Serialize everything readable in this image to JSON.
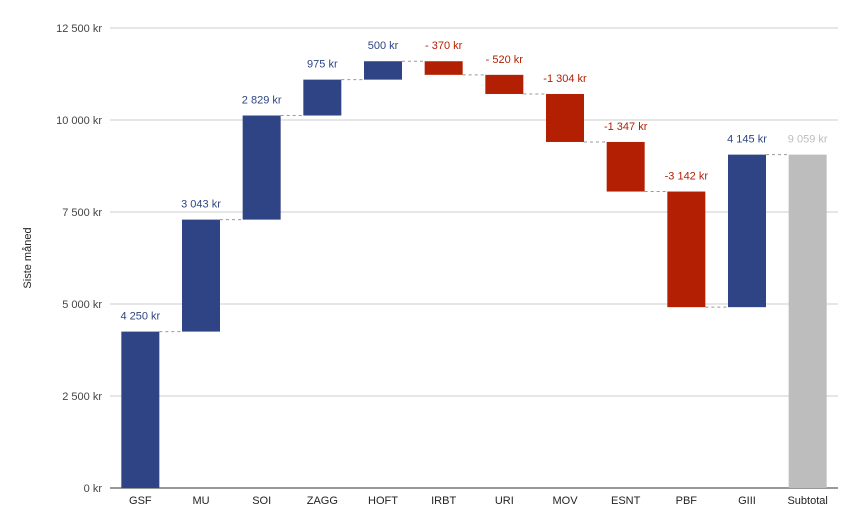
{
  "chart_data": {
    "type": "waterfall",
    "ylabel": "Siste måned",
    "ylim": [
      0,
      12500
    ],
    "yticks": [
      0,
      2500,
      5000,
      7500,
      10000,
      12500
    ],
    "ytick_labels": [
      "0 kr",
      "2 500 kr",
      "5 000 kr",
      "7 500 kr",
      "10 000 kr",
      "12 500 kr"
    ],
    "grid": true,
    "categories": [
      "GSF",
      "MU",
      "SOI",
      "ZAGG",
      "HOFT",
      "IRBT",
      "URI",
      "MOV",
      "ESNT",
      "PBF",
      "GIII",
      "Subtotal"
    ],
    "values": [
      4250,
      3043,
      2829,
      975,
      500,
      -370,
      -520,
      -1304,
      -1347,
      -3142,
      4145,
      9059
    ],
    "value_labels": [
      "4 250 kr",
      "3 043 kr",
      "2 829 kr",
      "975 kr",
      "500 kr",
      "- 370 kr",
      "- 520 kr",
      "-1 304 kr",
      "-1 347 kr",
      "-3 142 kr",
      "4 145 kr",
      "9 059 kr"
    ],
    "subtotal_index": 11,
    "colors": {
      "increase": "#2e4484",
      "decrease": "#b21f02",
      "subtotal": "#bdbdbd",
      "increase_label": "#2e4484",
      "decrease_label": "#b21f02",
      "subtotal_label": "#bdbdbd"
    }
  }
}
